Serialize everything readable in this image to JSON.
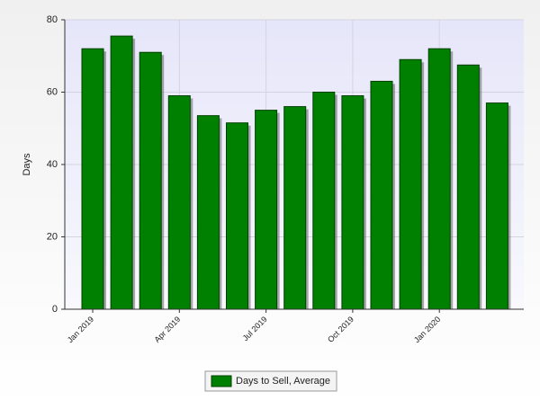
{
  "chart_data": {
    "type": "bar",
    "categories": [
      "Jan 2019",
      null,
      null,
      "Apr 2019",
      null,
      null,
      "Jul 2019",
      null,
      null,
      "Oct 2019",
      null,
      null,
      "Jan 2020",
      null,
      null
    ],
    "series": [
      {
        "name": "Days to Sell, Average",
        "color": "#008000",
        "values": [
          72,
          75.5,
          71,
          59,
          53.5,
          51.5,
          55,
          56,
          60,
          59,
          63,
          69,
          72,
          67.5,
          57
        ]
      }
    ],
    "y_label": "Days",
    "ylim": [
      0,
      80
    ],
    "yticks": [
      0,
      20,
      40,
      60,
      80
    ],
    "grid": true
  }
}
